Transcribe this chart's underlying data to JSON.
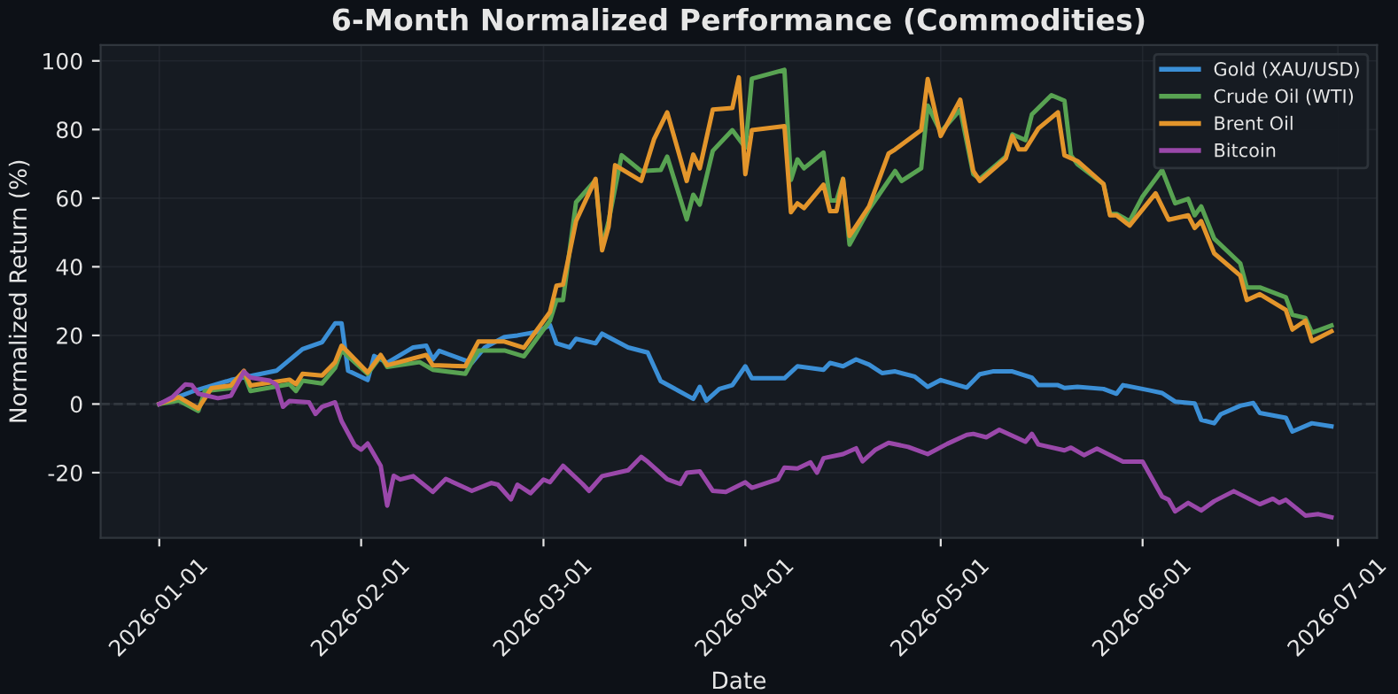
{
  "chart_data": {
    "type": "line",
    "title": "6-Month Normalized Performance (Commodities)",
    "xlabel": "Date",
    "ylabel": "Normalized Return (%)",
    "xlim": [
      "2025-12-23",
      "2026-07-07"
    ],
    "xticks": [
      "2026-01-01",
      "2026-02-01",
      "2026-03-01",
      "2026-04-01",
      "2026-05-01",
      "2026-06-01",
      "2026-07-01"
    ],
    "ylim": [
      -39,
      104.6
    ],
    "yticks": [
      -20,
      0,
      20,
      40,
      60,
      80,
      100
    ],
    "grid": true,
    "legend": "top right",
    "line_style": "solid",
    "marker": "none",
    "ref_lines": [
      {
        "axis": "y",
        "value": 0,
        "label": null,
        "color": "#3a3f47",
        "line_style": "dashed"
      }
    ],
    "series": [
      {
        "name": "Gold (XAU/USD)",
        "color": "#3b8fd6",
        "x": [
          "2026-01-01",
          "2026-01-06",
          "2026-01-12",
          "2026-01-19",
          "2026-01-23",
          "2026-01-26",
          "2026-01-28",
          "2026-01-29",
          "2026-01-30",
          "2026-02-02",
          "2026-02-03",
          "2026-02-05",
          "2026-02-09",
          "2026-02-11",
          "2026-02-12",
          "2026-02-13",
          "2026-02-18",
          "2026-02-20",
          "2026-02-23",
          "2026-02-25",
          "2026-02-28",
          "2026-03-02",
          "2026-03-03",
          "2026-03-05",
          "2026-03-06",
          "2026-03-09",
          "2026-03-10",
          "2026-03-14",
          "2026-03-17",
          "2026-03-19",
          "2026-03-24",
          "2026-03-25",
          "2026-03-26",
          "2026-03-28",
          "2026-03-30",
          "2026-04-01",
          "2026-04-02",
          "2026-04-07",
          "2026-04-09",
          "2026-04-13",
          "2026-04-14",
          "2026-04-16",
          "2026-04-18",
          "2026-04-20",
          "2026-04-22",
          "2026-04-24",
          "2026-04-27",
          "2026-04-29",
          "2026-05-01",
          "2026-05-05",
          "2026-05-07",
          "2026-05-09",
          "2026-05-12",
          "2026-05-15",
          "2026-05-16",
          "2026-05-19",
          "2026-05-20",
          "2026-05-22",
          "2026-05-26",
          "2026-05-28",
          "2026-05-29",
          "2026-06-02",
          "2026-06-04",
          "2026-06-06",
          "2026-06-09",
          "2026-06-10",
          "2026-06-12",
          "2026-06-13",
          "2026-06-16",
          "2026-06-18",
          "2026-06-19",
          "2026-06-23",
          "2026-06-24",
          "2026-06-27",
          "2026-06-30"
        ],
        "values": [
          0,
          3.6,
          7,
          9.7,
          16,
          18,
          23.5,
          23.5,
          9.7,
          7,
          14,
          12,
          16.5,
          17,
          13,
          15.5,
          12,
          16.5,
          19.5,
          20,
          21,
          23,
          17.7,
          16.5,
          19,
          17.7,
          20.5,
          16.5,
          15,
          6.7,
          1.5,
          5,
          1,
          4.4,
          5.5,
          11,
          7.5,
          7.5,
          11,
          10,
          12,
          11,
          13,
          11.5,
          9,
          9.5,
          8,
          5,
          7,
          4.8,
          8.7,
          9.5,
          9.5,
          7.7,
          5.5,
          5.5,
          4.7,
          5,
          4.4,
          3,
          5.5,
          4,
          3.2,
          0.7,
          0.2,
          -4.6,
          -5.6,
          -3,
          -0.5,
          0.3,
          -2.6,
          -4,
          -8,
          -5.6,
          -6.5
        ]
      },
      {
        "name": "Crude Oil (WTI)",
        "color": "#58a352",
        "x": [
          "2026-01-01",
          "2026-01-04",
          "2026-01-07",
          "2026-01-08",
          "2026-01-12",
          "2026-01-14",
          "2026-01-15",
          "2026-01-21",
          "2026-01-22",
          "2026-01-23",
          "2026-01-26",
          "2026-01-28",
          "2026-01-29",
          "2026-02-02",
          "2026-02-04",
          "2026-02-05",
          "2026-02-10",
          "2026-02-12",
          "2026-02-17",
          "2026-02-19",
          "2026-02-23",
          "2026-02-26",
          "2026-03-02",
          "2026-03-03",
          "2026-03-04",
          "2026-03-06",
          "2026-03-09",
          "2026-03-10",
          "2026-03-11",
          "2026-03-13",
          "2026-03-16",
          "2026-03-19",
          "2026-03-20",
          "2026-03-23",
          "2026-03-24",
          "2026-03-25",
          "2026-03-27",
          "2026-03-30",
          "2026-04-01",
          "2026-04-02",
          "2026-04-07",
          "2026-04-08",
          "2026-04-09",
          "2026-04-10",
          "2026-04-13",
          "2026-04-14",
          "2026-04-15",
          "2026-04-16",
          "2026-04-17",
          "2026-04-20",
          "2026-04-24",
          "2026-04-25",
          "2026-04-28",
          "2026-04-29",
          "2026-05-01",
          "2026-05-04",
          "2026-05-06",
          "2026-05-07",
          "2026-05-11",
          "2026-05-12",
          "2026-05-14",
          "2026-05-15",
          "2026-05-18",
          "2026-05-20",
          "2026-05-21",
          "2026-05-22",
          "2026-05-26",
          "2026-05-27",
          "2026-05-28",
          "2026-05-30",
          "2026-06-01",
          "2026-06-04",
          "2026-06-06",
          "2026-06-08",
          "2026-06-09",
          "2026-06-10",
          "2026-06-12",
          "2026-06-16",
          "2026-06-17",
          "2026-06-19",
          "2026-06-23",
          "2026-06-24",
          "2026-06-26",
          "2026-06-27",
          "2026-06-30"
        ],
        "values": [
          0,
          1,
          -2,
          3.8,
          4.6,
          8.9,
          3.8,
          5.8,
          3.8,
          6.8,
          6,
          10.5,
          15.6,
          8.8,
          13.9,
          10.8,
          12.2,
          10,
          8.8,
          15.6,
          15.6,
          13.9,
          24.3,
          30.3,
          30.3,
          58.8,
          65.3,
          45.6,
          53.3,
          72.5,
          67.9,
          68.2,
          72.1,
          53.8,
          61,
          58.1,
          73.8,
          79.8,
          74.7,
          94.8,
          97.4,
          65.3,
          71.3,
          68.7,
          73.3,
          59.3,
          59.3,
          65.6,
          46.5,
          56.8,
          67.9,
          65,
          68.7,
          87,
          79.3,
          85.8,
          67,
          65.6,
          72.1,
          78.6,
          76.9,
          84.4,
          90,
          88.4,
          72.5,
          69.9,
          64.1,
          55.4,
          55.4,
          53.3,
          60.5,
          68.2,
          58.5,
          59.8,
          55,
          57.6,
          48.2,
          41,
          34,
          34,
          31.1,
          26,
          25.1,
          20.8,
          22.9
        ]
      },
      {
        "name": "Brent Oil",
        "color": "#e3952b",
        "x": [
          "2026-01-01",
          "2026-01-04",
          "2026-01-07",
          "2026-01-09",
          "2026-01-12",
          "2026-01-14",
          "2026-01-15",
          "2026-01-21",
          "2026-01-22",
          "2026-01-23",
          "2026-01-26",
          "2026-01-28",
          "2026-01-29",
          "2026-02-02",
          "2026-02-04",
          "2026-02-05",
          "2026-02-11",
          "2026-02-12",
          "2026-02-17",
          "2026-02-19",
          "2026-02-23",
          "2026-02-26",
          "2026-03-02",
          "2026-03-03",
          "2026-03-04",
          "2026-03-06",
          "2026-03-09",
          "2026-03-10",
          "2026-03-11",
          "2026-03-12",
          "2026-03-16",
          "2026-03-18",
          "2026-03-20",
          "2026-03-23",
          "2026-03-24",
          "2026-03-25",
          "2026-03-27",
          "2026-03-30",
          "2026-03-31",
          "2026-04-01",
          "2026-04-02",
          "2026-04-07",
          "2026-04-08",
          "2026-04-09",
          "2026-04-10",
          "2026-04-13",
          "2026-04-14",
          "2026-04-15",
          "2026-04-16",
          "2026-04-17",
          "2026-04-20",
          "2026-04-23",
          "2026-04-24",
          "2026-04-28",
          "2026-04-29",
          "2026-05-01",
          "2026-05-04",
          "2026-05-06",
          "2026-05-07",
          "2026-05-11",
          "2026-05-12",
          "2026-05-13",
          "2026-05-14",
          "2026-05-16",
          "2026-05-19",
          "2026-05-20",
          "2026-05-22",
          "2026-05-26",
          "2026-05-27",
          "2026-05-28",
          "2026-05-30",
          "2026-06-03",
          "2026-06-05",
          "2026-06-08",
          "2026-06-09",
          "2026-06-10",
          "2026-06-12",
          "2026-06-16",
          "2026-06-17",
          "2026-06-19",
          "2026-06-23",
          "2026-06-24",
          "2026-06-26",
          "2026-06-27",
          "2026-06-30"
        ],
        "values": [
          0,
          2,
          -1.3,
          4.6,
          5.4,
          9.7,
          5.4,
          7.1,
          5.8,
          8.8,
          8.3,
          12.2,
          17,
          9.2,
          14.3,
          11.3,
          14.3,
          11.3,
          11,
          18.2,
          18.2,
          16.4,
          26.8,
          34.5,
          34.8,
          53.3,
          65.6,
          44.8,
          51.7,
          69.6,
          65,
          77.3,
          85,
          65,
          72.7,
          68.7,
          85.8,
          86.3,
          95.2,
          67,
          79.8,
          81,
          55.9,
          58.5,
          57.1,
          63.9,
          56.2,
          56.2,
          65.6,
          49,
          57.6,
          73,
          74.2,
          79.8,
          94.7,
          78.1,
          88.7,
          67.9,
          65,
          71.6,
          78.1,
          74.2,
          74.2,
          80.3,
          85,
          72.5,
          70.8,
          64.1,
          55,
          55,
          52,
          61.4,
          53.7,
          55,
          51.3,
          53.3,
          43.9,
          37.4,
          30.3,
          32,
          27.4,
          21.7,
          24.3,
          18.3,
          21.2
        ]
      },
      {
        "name": "Bitcoin",
        "color": "#9a48aa",
        "x": [
          "2026-01-01",
          "2026-01-03",
          "2026-01-05",
          "2026-01-06",
          "2026-01-07",
          "2026-01-10",
          "2026-01-12",
          "2026-01-14",
          "2026-01-15",
          "2026-01-18",
          "2026-01-19",
          "2026-01-20",
          "2026-01-21",
          "2026-01-24",
          "2026-01-25",
          "2026-01-26",
          "2026-01-28",
          "2026-01-29",
          "2026-01-31",
          "2026-02-01",
          "2026-02-02",
          "2026-02-04",
          "2026-02-05",
          "2026-02-06",
          "2026-02-07",
          "2026-02-09",
          "2026-02-12",
          "2026-02-14",
          "2026-02-18",
          "2026-02-21",
          "2026-02-22",
          "2026-02-24",
          "2026-02-25",
          "2026-02-27",
          "2026-03-01",
          "2026-03-02",
          "2026-03-04",
          "2026-03-07",
          "2026-03-08",
          "2026-03-10",
          "2026-03-14",
          "2026-03-16",
          "2026-03-17",
          "2026-03-20",
          "2026-03-22",
          "2026-03-23",
          "2026-03-25",
          "2026-03-27",
          "2026-03-29",
          "2026-04-01",
          "2026-04-02",
          "2026-04-06",
          "2026-04-07",
          "2026-04-09",
          "2026-04-11",
          "2026-04-12",
          "2026-04-13",
          "2026-04-16",
          "2026-04-18",
          "2026-04-19",
          "2026-04-21",
          "2026-04-23",
          "2026-04-26",
          "2026-04-29",
          "2026-05-02",
          "2026-05-05",
          "2026-05-06",
          "2026-05-08",
          "2026-05-10",
          "2026-05-14",
          "2026-05-15",
          "2026-05-16",
          "2026-05-20",
          "2026-05-21",
          "2026-05-23",
          "2026-05-25",
          "2026-05-29",
          "2026-06-01",
          "2026-06-04",
          "2026-06-05",
          "2026-06-06",
          "2026-06-08",
          "2026-06-10",
          "2026-06-12",
          "2026-06-15",
          "2026-06-19",
          "2026-06-21",
          "2026-06-22",
          "2026-06-23",
          "2026-06-26",
          "2026-06-28",
          "2026-06-30"
        ],
        "values": [
          0,
          2,
          5.7,
          5.5,
          3,
          1.7,
          2.4,
          9.4,
          7.7,
          6.8,
          5.6,
          -0.8,
          0.9,
          0.5,
          -2.9,
          -0.8,
          0.5,
          -5,
          -12,
          -13.3,
          -11.5,
          -18,
          -29.6,
          -20.9,
          -22,
          -21,
          -25.6,
          -21.8,
          -25.3,
          -23,
          -23.5,
          -27.8,
          -23.5,
          -26,
          -22,
          -22.8,
          -18,
          -23.3,
          -25.3,
          -21,
          -19.3,
          -15.4,
          -16.8,
          -21.9,
          -23.3,
          -20,
          -19.6,
          -25.3,
          -25.6,
          -22.8,
          -24.4,
          -21.9,
          -18.5,
          -18.8,
          -17,
          -20,
          -15.8,
          -14.6,
          -12.9,
          -16.7,
          -13.3,
          -11.3,
          -12.5,
          -14.6,
          -11.6,
          -9,
          -8.7,
          -9.7,
          -7.5,
          -11,
          -8.7,
          -11.8,
          -13.5,
          -12.7,
          -14.9,
          -13,
          -16.8,
          -16.8,
          -27,
          -27.9,
          -31.3,
          -28.8,
          -31,
          -28.3,
          -25.4,
          -29.2,
          -27.6,
          -28.8,
          -27.9,
          -32.5,
          -32.1,
          -33
        ]
      }
    ]
  }
}
